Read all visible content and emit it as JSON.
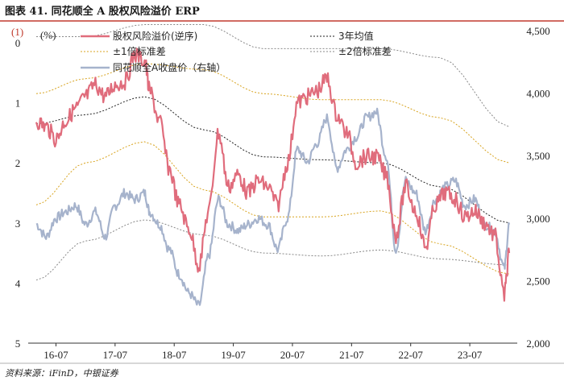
{
  "figure": {
    "title": "图表 41. 同花顺全 A 股权风险溢价 ERP",
    "source": "资料来源：iFinD，中银证券",
    "panel_marker": "(1)",
    "left_unit": "(%)"
  },
  "chart_data": {
    "type": "line",
    "x_tick_labels": [
      "16-07",
      "17-07",
      "18-07",
      "19-07",
      "20-07",
      "21-07",
      "22-07",
      "23-07"
    ],
    "x_range": [
      "2016-03",
      "2024-03"
    ],
    "left_axis": {
      "ticks": [
        0,
        1,
        2,
        3,
        4,
        5
      ],
      "ylim": [
        -0.2,
        5
      ],
      "inverted": true
    },
    "right_axis": {
      "ticks": [
        "2,000",
        "2,500",
        "3,000",
        "3,500",
        "4,000",
        "4,500"
      ],
      "ylim": [
        2000,
        4500
      ]
    },
    "legend": [
      "股权风险溢价(逆序)",
      "3年均值",
      "±1倍标准差",
      "±2倍标准差",
      "同花顺全A收盘价（右轴）"
    ],
    "colors": {
      "erp": "#e06c7c",
      "index": "#a6b3cc",
      "mean": "#222222",
      "std1": "#d8a420",
      "std2": "#888888"
    },
    "series": [
      {
        "key": "erp",
        "axis": "left",
        "points": [
          [
            "2016-03",
            1.3
          ],
          [
            "2016-05",
            1.4
          ],
          [
            "2016-07",
            1.6
          ],
          [
            "2016-09",
            1.3
          ],
          [
            "2016-11",
            1.1
          ],
          [
            "2017-01",
            0.9
          ],
          [
            "2017-03",
            0.7
          ],
          [
            "2017-05",
            0.9
          ],
          [
            "2017-07",
            0.7
          ],
          [
            "2017-09",
            0.65
          ],
          [
            "2017-11",
            0.2
          ],
          [
            "2018-01",
            0.3
          ],
          [
            "2018-02",
            0.8
          ],
          [
            "2018-04",
            1.3
          ],
          [
            "2018-06",
            2.1
          ],
          [
            "2018-08",
            2.7
          ],
          [
            "2018-10",
            3.1
          ],
          [
            "2018-12",
            3.7
          ],
          [
            "2019-02",
            2.8
          ],
          [
            "2019-04",
            1.5
          ],
          [
            "2019-06",
            2.4
          ],
          [
            "2019-08",
            2.2
          ],
          [
            "2019-10",
            2.5
          ],
          [
            "2019-12",
            2.3
          ],
          [
            "2020-02",
            2.4
          ],
          [
            "2020-04",
            2.7
          ],
          [
            "2020-06",
            2.0
          ],
          [
            "2020-08",
            1.0
          ],
          [
            "2020-10",
            0.9
          ],
          [
            "2020-12",
            0.8
          ],
          [
            "2021-02",
            0.6
          ],
          [
            "2021-04",
            1.2
          ],
          [
            "2021-06",
            1.5
          ],
          [
            "2021-08",
            2.0
          ],
          [
            "2021-10",
            1.9
          ],
          [
            "2021-12",
            1.9
          ],
          [
            "2022-02",
            2.2
          ],
          [
            "2022-04",
            3.2
          ],
          [
            "2022-06",
            2.4
          ],
          [
            "2022-08",
            2.8
          ],
          [
            "2022-10",
            3.4
          ],
          [
            "2022-12",
            2.7
          ],
          [
            "2023-02",
            2.5
          ],
          [
            "2023-04",
            2.6
          ],
          [
            "2023-06",
            2.9
          ],
          [
            "2023-08",
            2.8
          ],
          [
            "2023-10",
            3.0
          ],
          [
            "2023-12",
            3.2
          ],
          [
            "2024-02",
            4.2
          ],
          [
            "2024-03",
            3.5
          ]
        ]
      },
      {
        "key": "index",
        "axis": "right",
        "points": [
          [
            "2016-03",
            2950
          ],
          [
            "2016-05",
            2850
          ],
          [
            "2016-07",
            3000
          ],
          [
            "2016-09",
            3050
          ],
          [
            "2016-11",
            3100
          ],
          [
            "2017-01",
            2950
          ],
          [
            "2017-03",
            3050
          ],
          [
            "2017-05",
            2850
          ],
          [
            "2017-07",
            3100
          ],
          [
            "2017-09",
            3200
          ],
          [
            "2017-11",
            3150
          ],
          [
            "2018-01",
            3200
          ],
          [
            "2018-02",
            3050
          ],
          [
            "2018-04",
            2950
          ],
          [
            "2018-06",
            2750
          ],
          [
            "2018-08",
            2550
          ],
          [
            "2018-10",
            2400
          ],
          [
            "2018-12",
            2300
          ],
          [
            "2019-02",
            2700
          ],
          [
            "2019-04",
            3150
          ],
          [
            "2019-06",
            2950
          ],
          [
            "2019-08",
            2900
          ],
          [
            "2019-10",
            2950
          ],
          [
            "2019-12",
            3000
          ],
          [
            "2020-02",
            2950
          ],
          [
            "2020-04",
            2750
          ],
          [
            "2020-06",
            3000
          ],
          [
            "2020-08",
            3550
          ],
          [
            "2020-10",
            3450
          ],
          [
            "2020-12",
            3600
          ],
          [
            "2021-02",
            3800
          ],
          [
            "2021-04",
            3400
          ],
          [
            "2021-06",
            3550
          ],
          [
            "2021-08",
            3650
          ],
          [
            "2021-10",
            3800
          ],
          [
            "2021-12",
            3850
          ],
          [
            "2022-02",
            3500
          ],
          [
            "2022-04",
            2750
          ],
          [
            "2022-06",
            3300
          ],
          [
            "2022-08",
            3200
          ],
          [
            "2022-10",
            2900
          ],
          [
            "2022-12",
            3150
          ],
          [
            "2023-02",
            3250
          ],
          [
            "2023-04",
            3300
          ],
          [
            "2023-06",
            3100
          ],
          [
            "2023-08",
            3150
          ],
          [
            "2023-10",
            2950
          ],
          [
            "2023-12",
            2900
          ],
          [
            "2024-02",
            2600
          ],
          [
            "2024-03",
            2950
          ]
        ]
      },
      {
        "key": "mean",
        "axis": "left",
        "points": [
          [
            "2016-03",
            1.35
          ],
          [
            "2017-01",
            1.2
          ],
          [
            "2018-01",
            0.9
          ],
          [
            "2019-01",
            1.45
          ],
          [
            "2020-01",
            1.9
          ],
          [
            "2021-01",
            1.95
          ],
          [
            "2022-01",
            2.0
          ],
          [
            "2023-01",
            2.4
          ],
          [
            "2024-03",
            3.0
          ]
        ]
      },
      {
        "key": "std1_upper",
        "axis": "left",
        "points": [
          [
            "2016-03",
            0.85
          ],
          [
            "2017-01",
            0.6
          ],
          [
            "2018-01",
            0.35
          ],
          [
            "2019-01",
            0.45
          ],
          [
            "2020-01",
            0.85
          ],
          [
            "2021-01",
            0.95
          ],
          [
            "2022-01",
            0.95
          ],
          [
            "2023-01",
            1.25
          ],
          [
            "2024-03",
            2.0
          ]
        ]
      },
      {
        "key": "std1_lower",
        "axis": "left",
        "points": [
          [
            "2016-03",
            2.7
          ],
          [
            "2017-01",
            2.0
          ],
          [
            "2018-01",
            1.65
          ],
          [
            "2019-01",
            2.45
          ],
          [
            "2020-01",
            2.9
          ],
          [
            "2021-01",
            2.9
          ],
          [
            "2022-01",
            2.8
          ],
          [
            "2023-01",
            3.35
          ],
          [
            "2024-03",
            3.85
          ]
        ]
      },
      {
        "key": "std2_upper",
        "axis": "left",
        "points": [
          [
            "2016-03",
            -0.1
          ],
          [
            "2017-01",
            -0.1
          ],
          [
            "2018-01",
            -0.3
          ],
          [
            "2019-01",
            -0.3
          ],
          [
            "2020-01",
            0.1
          ],
          [
            "2021-01",
            0.1
          ],
          [
            "2022-01",
            0.1
          ],
          [
            "2023-01",
            0.25
          ],
          [
            "2024-03",
            1.4
          ]
        ]
      },
      {
        "key": "std2_lower",
        "axis": "left",
        "points": [
          [
            "2016-03",
            3.95
          ],
          [
            "2017-01",
            3.3
          ],
          [
            "2018-01",
            2.95
          ],
          [
            "2019-01",
            3.2
          ],
          [
            "2020-01",
            3.5
          ],
          [
            "2021-01",
            3.55
          ],
          [
            "2022-01",
            3.45
          ],
          [
            "2023-01",
            3.6
          ],
          [
            "2024-03",
            3.7
          ]
        ]
      }
    ]
  }
}
